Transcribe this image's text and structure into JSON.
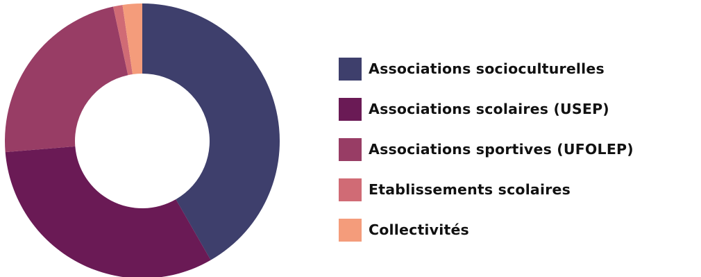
{
  "chart_data": {
    "type": "pie",
    "variant": "donut",
    "title": "",
    "categories": [
      "Associations socioculturelles",
      "Associations scolaires (USEP)",
      "Associations sportives (UFOLEP)",
      "Etablissements scolaires",
      "Collectivités"
    ],
    "values": [
      41.7,
      32.0,
      22.9,
      1.1,
      2.3
    ],
    "colors": [
      "#3e3f6c",
      "#6a1a55",
      "#983d65",
      "#d06b75",
      "#f49c7b"
    ],
    "legend_position": "right"
  }
}
